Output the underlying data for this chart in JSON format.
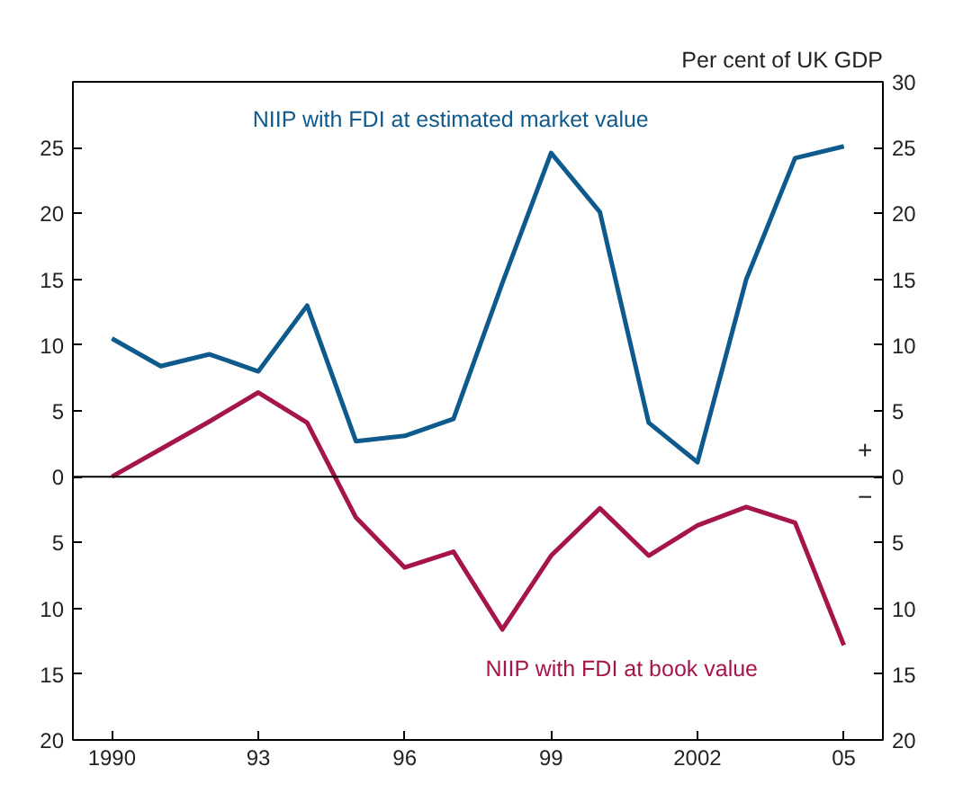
{
  "chart_data": {
    "type": "line",
    "y2label": "Per cent of UK GDP",
    "x": [
      1990,
      1991,
      1992,
      1993,
      1994,
      1995,
      1996,
      1997,
      1998,
      1999,
      2000,
      2001,
      2002,
      2003,
      2004,
      2005
    ],
    "series": [
      {
        "name": "NIIP with FDI at estimated market value",
        "color": "#0f5a8c",
        "values": [
          10.5,
          8.4,
          9.3,
          8.0,
          13.0,
          2.7,
          3.1,
          4.4,
          14.7,
          24.6,
          20.1,
          4.1,
          1.1,
          15.0,
          24.2,
          25.1
        ]
      },
      {
        "name": "NIIP with FDI at book value",
        "color": "#a5154c",
        "values": [
          0,
          2.1,
          4.2,
          6.4,
          4.1,
          -3.1,
          -6.9,
          -5.7,
          -11.6,
          -6.0,
          -2.4,
          -6.0,
          -3.7,
          -2.3,
          -3.5,
          -12.8
        ]
      }
    ],
    "xlim": [
      1989.2,
      2005.8
    ],
    "xticks": [
      1990,
      {
        "value": 1993,
        "label": "93"
      },
      {
        "value": 1996,
        "label": "96"
      },
      {
        "value": 1999,
        "label": "99"
      },
      2002,
      {
        "value": 2005,
        "label": "05"
      }
    ],
    "ylim": [
      -20,
      30
    ],
    "yticks": [
      {
        "value": -20,
        "label": "20"
      },
      {
        "value": -15,
        "label": "15"
      },
      {
        "value": -10,
        "label": "10"
      },
      {
        "value": -5,
        "label": "5"
      },
      0,
      5,
      10,
      15,
      20,
      25,
      {
        "value": 30,
        "label": null
      }
    ],
    "y2lim": [
      -20,
      30
    ],
    "y2ticks": [
      {
        "value": -20,
        "label": "20"
      },
      {
        "value": -15,
        "label": "15"
      },
      {
        "value": -10,
        "label": "10"
      },
      {
        "value": -5,
        "label": "5"
      },
      0,
      5,
      10,
      15,
      20,
      25,
      30
    ],
    "ref_lines": [
      {
        "axis": "y",
        "value": 0,
        "color": "#000000"
      }
    ],
    "annotations": [
      "+",
      "−"
    ],
    "grid": false,
    "marker": "none",
    "line_style": "solid"
  }
}
